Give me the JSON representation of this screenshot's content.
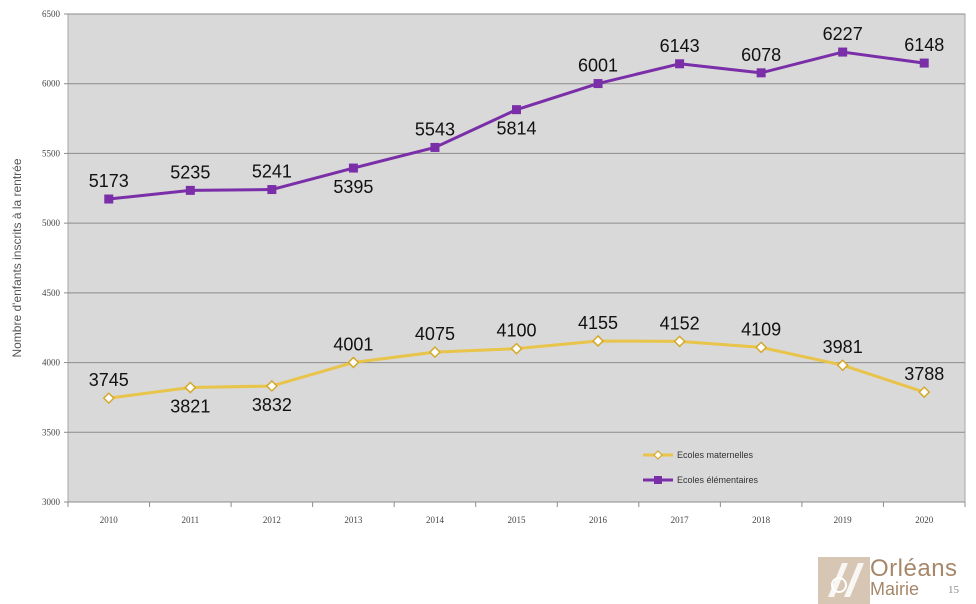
{
  "chart_data": {
    "type": "line",
    "title": "",
    "xlabel": "",
    "ylabel": "Nombre d'enfants inscrits à la rentrée",
    "ylim": [
      3000,
      6500
    ],
    "yticks": [
      3000,
      3500,
      4000,
      4500,
      5000,
      5500,
      6000,
      6500
    ],
    "grid": true,
    "legend": "bottom-right",
    "categories": [
      "2010",
      "2011",
      "2012",
      "2013",
      "2014",
      "2015",
      "2016",
      "2017",
      "2018",
      "2019",
      "2020"
    ],
    "series": [
      {
        "name": "Ecoles maternelles",
        "color": "#e8c44a",
        "marker": "diamond",
        "values": [
          3745,
          3821,
          3832,
          4001,
          4075,
          4100,
          4155,
          4152,
          4109,
          3981,
          3788
        ],
        "label_position": [
          "above",
          "below",
          "below",
          "above",
          "above",
          "above",
          "above",
          "above",
          "above",
          "above",
          "above"
        ]
      },
      {
        "name": "Ecoles élémentaires",
        "color": "#7a2fa8",
        "marker": "square",
        "values": [
          5173,
          5235,
          5241,
          5395,
          5543,
          5814,
          6001,
          6143,
          6078,
          6227,
          6148
        ],
        "label_position": [
          "above",
          "above",
          "above",
          "below",
          "above",
          "below",
          "above",
          "above",
          "above",
          "above",
          "above"
        ]
      }
    ],
    "plot_background": "#d9d9d9"
  },
  "logo": {
    "name": "Orléans",
    "sub": "Mairie",
    "color": "#a7876a"
  },
  "page_number": "15"
}
